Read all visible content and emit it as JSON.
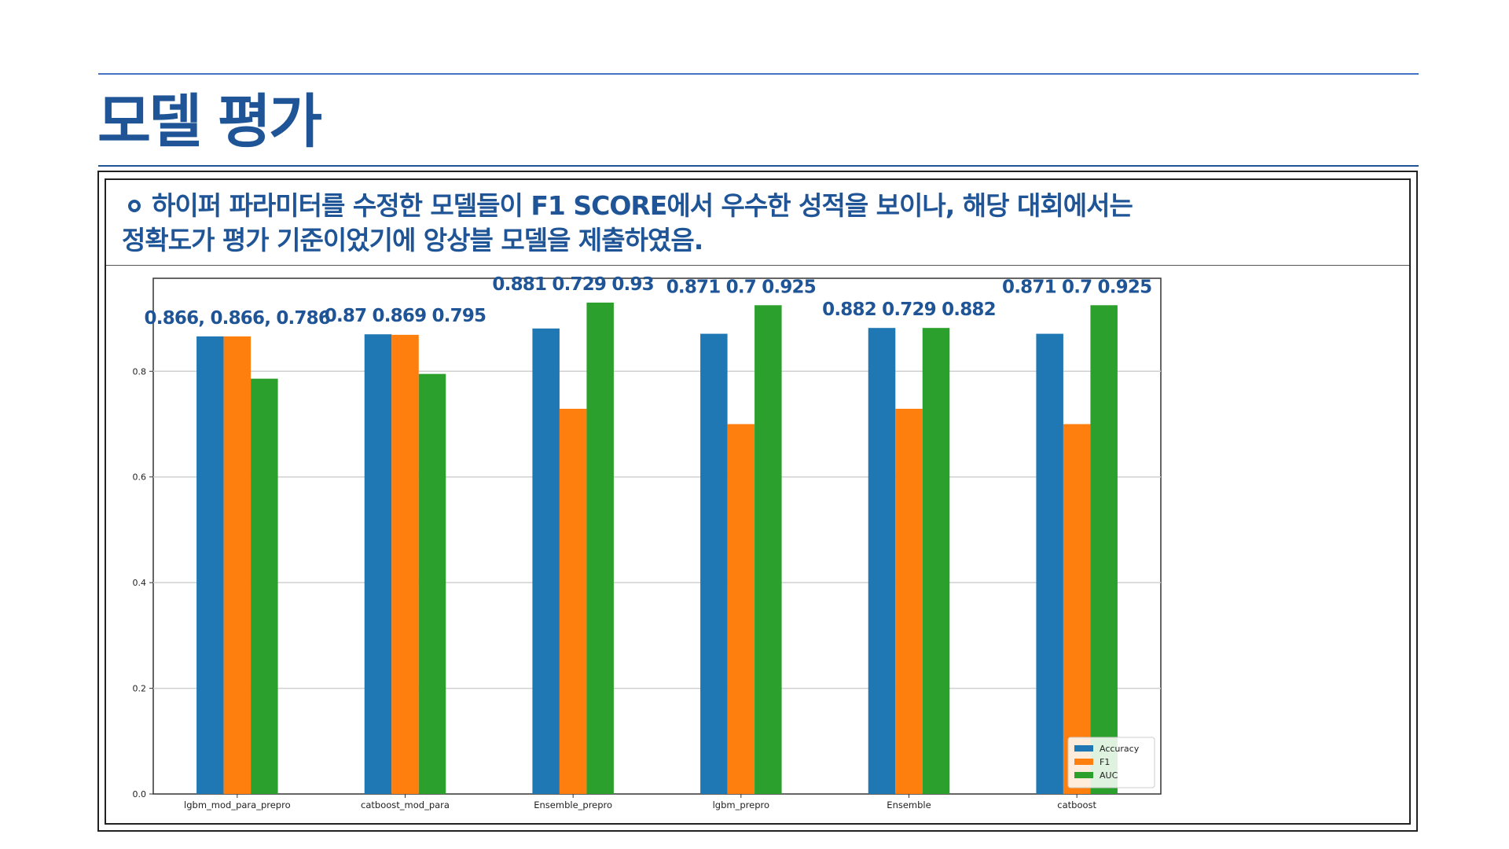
{
  "slide": {
    "title": "모델 평가",
    "description_line1": "하이퍼 파라미터를 수정한 모델들이 F1 SCORE에서 우수한 성적을 보이나, 해당 대회에서는",
    "description_line2": "정확도가 평가 기준이었기에 앙상블 모델을 제출하였음."
  },
  "colors": {
    "accent": "#1f5596",
    "rule": "#4472c4",
    "accuracy": "#1f77b4",
    "f1": "#ff7f0e",
    "auc": "#2ca02c"
  },
  "chart_data": {
    "type": "bar",
    "categories": [
      "lgbm_mod_para_prepro",
      "catboost_mod_para",
      "Ensemble_prepro",
      "lgbm_prepro",
      "Ensemble",
      "catboost"
    ],
    "series": [
      {
        "name": "Accuracy",
        "color": "#1f77b4",
        "values": [
          0.866,
          0.87,
          0.881,
          0.871,
          0.882,
          0.871
        ]
      },
      {
        "name": "F1",
        "color": "#ff7f0e",
        "values": [
          0.866,
          0.869,
          0.729,
          0.7,
          0.729,
          0.7
        ]
      },
      {
        "name": "AUC",
        "color": "#2ca02c",
        "values": [
          0.786,
          0.795,
          0.93,
          0.925,
          0.882,
          0.925
        ]
      }
    ],
    "annotations": [
      "0.866, 0.866, 0.786",
      "0.87 0.869 0.795",
      "0.881 0.729 0.93",
      "0.871 0.7 0.925",
      "0.882 0.729 0.882",
      "0.871 0.7 0.925"
    ],
    "yticks": [
      "0.0",
      "0.2",
      "0.4",
      "0.6",
      "0.8"
    ],
    "ylim": [
      0,
      0.976
    ],
    "grid": true,
    "legend_position": "bottom-right",
    "xlabel": "",
    "ylabel": ""
  }
}
